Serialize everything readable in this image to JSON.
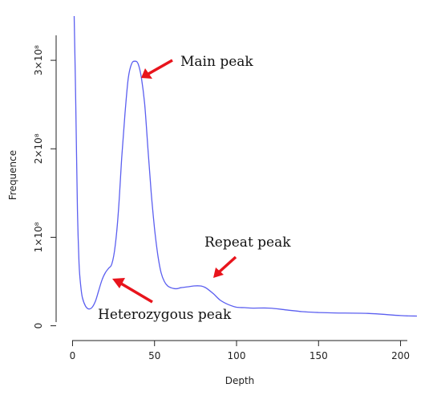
{
  "chart_data": {
    "type": "line",
    "title": "",
    "xlabel": "Depth",
    "ylabel": "Frequence",
    "xlim": [
      -10,
      210
    ],
    "ylim": [
      -4000000,
      350000000
    ],
    "x_ticks": [
      0,
      50,
      100,
      150,
      200
    ],
    "x_tick_labels": [
      "0",
      "50",
      "100",
      "150",
      "200"
    ],
    "y_ticks": [
      0,
      100000000,
      200000000,
      300000000
    ],
    "y_tick_labels": [
      "0",
      "1×10⁸",
      "2×10⁸",
      "3×10⁸"
    ],
    "grid": false,
    "legend": "none",
    "line_color": "#5b5ff0",
    "arrow_color": "#e8141c",
    "series": [
      {
        "x": [
          1,
          2,
          3,
          4,
          5,
          6,
          8,
          10,
          12,
          14,
          16,
          18,
          20,
          22,
          24,
          26,
          28,
          30,
          32,
          34,
          36,
          38,
          40,
          42,
          44,
          46,
          48,
          50,
          52,
          54,
          56,
          58,
          60,
          62,
          64,
          66,
          70,
          74,
          78,
          80,
          82,
          86,
          90,
          95,
          100,
          105,
          110,
          120,
          130,
          140,
          150,
          160,
          180,
          200,
          210
        ],
        "y": [
          380000000,
          250000000,
          130000000,
          70000000,
          45000000,
          32000000,
          22000000,
          19000000,
          21000000,
          28000000,
          40000000,
          52000000,
          60000000,
          65000000,
          70000000,
          90000000,
          130000000,
          190000000,
          240000000,
          280000000,
          296000000,
          299000000,
          296000000,
          280000000,
          250000000,
          200000000,
          150000000,
          110000000,
          80000000,
          60000000,
          50000000,
          45000000,
          43000000,
          42000000,
          42000000,
          43000000,
          44000000,
          45000000,
          45000000,
          44000000,
          42000000,
          36000000,
          29000000,
          24000000,
          21000000,
          20500000,
          20000000,
          20000000,
          18000000,
          16000000,
          15000000,
          14500000,
          14000000,
          11500000,
          11000000
        ]
      }
    ],
    "annotations": [
      {
        "text": "Main peak",
        "point": [
          41,
          299000000
        ]
      },
      {
        "text": "Repeat peak",
        "point": [
          79,
          46000000
        ]
      },
      {
        "text": "Heterozygous peak",
        "point": [
          24,
          53000000
        ]
      }
    ]
  }
}
